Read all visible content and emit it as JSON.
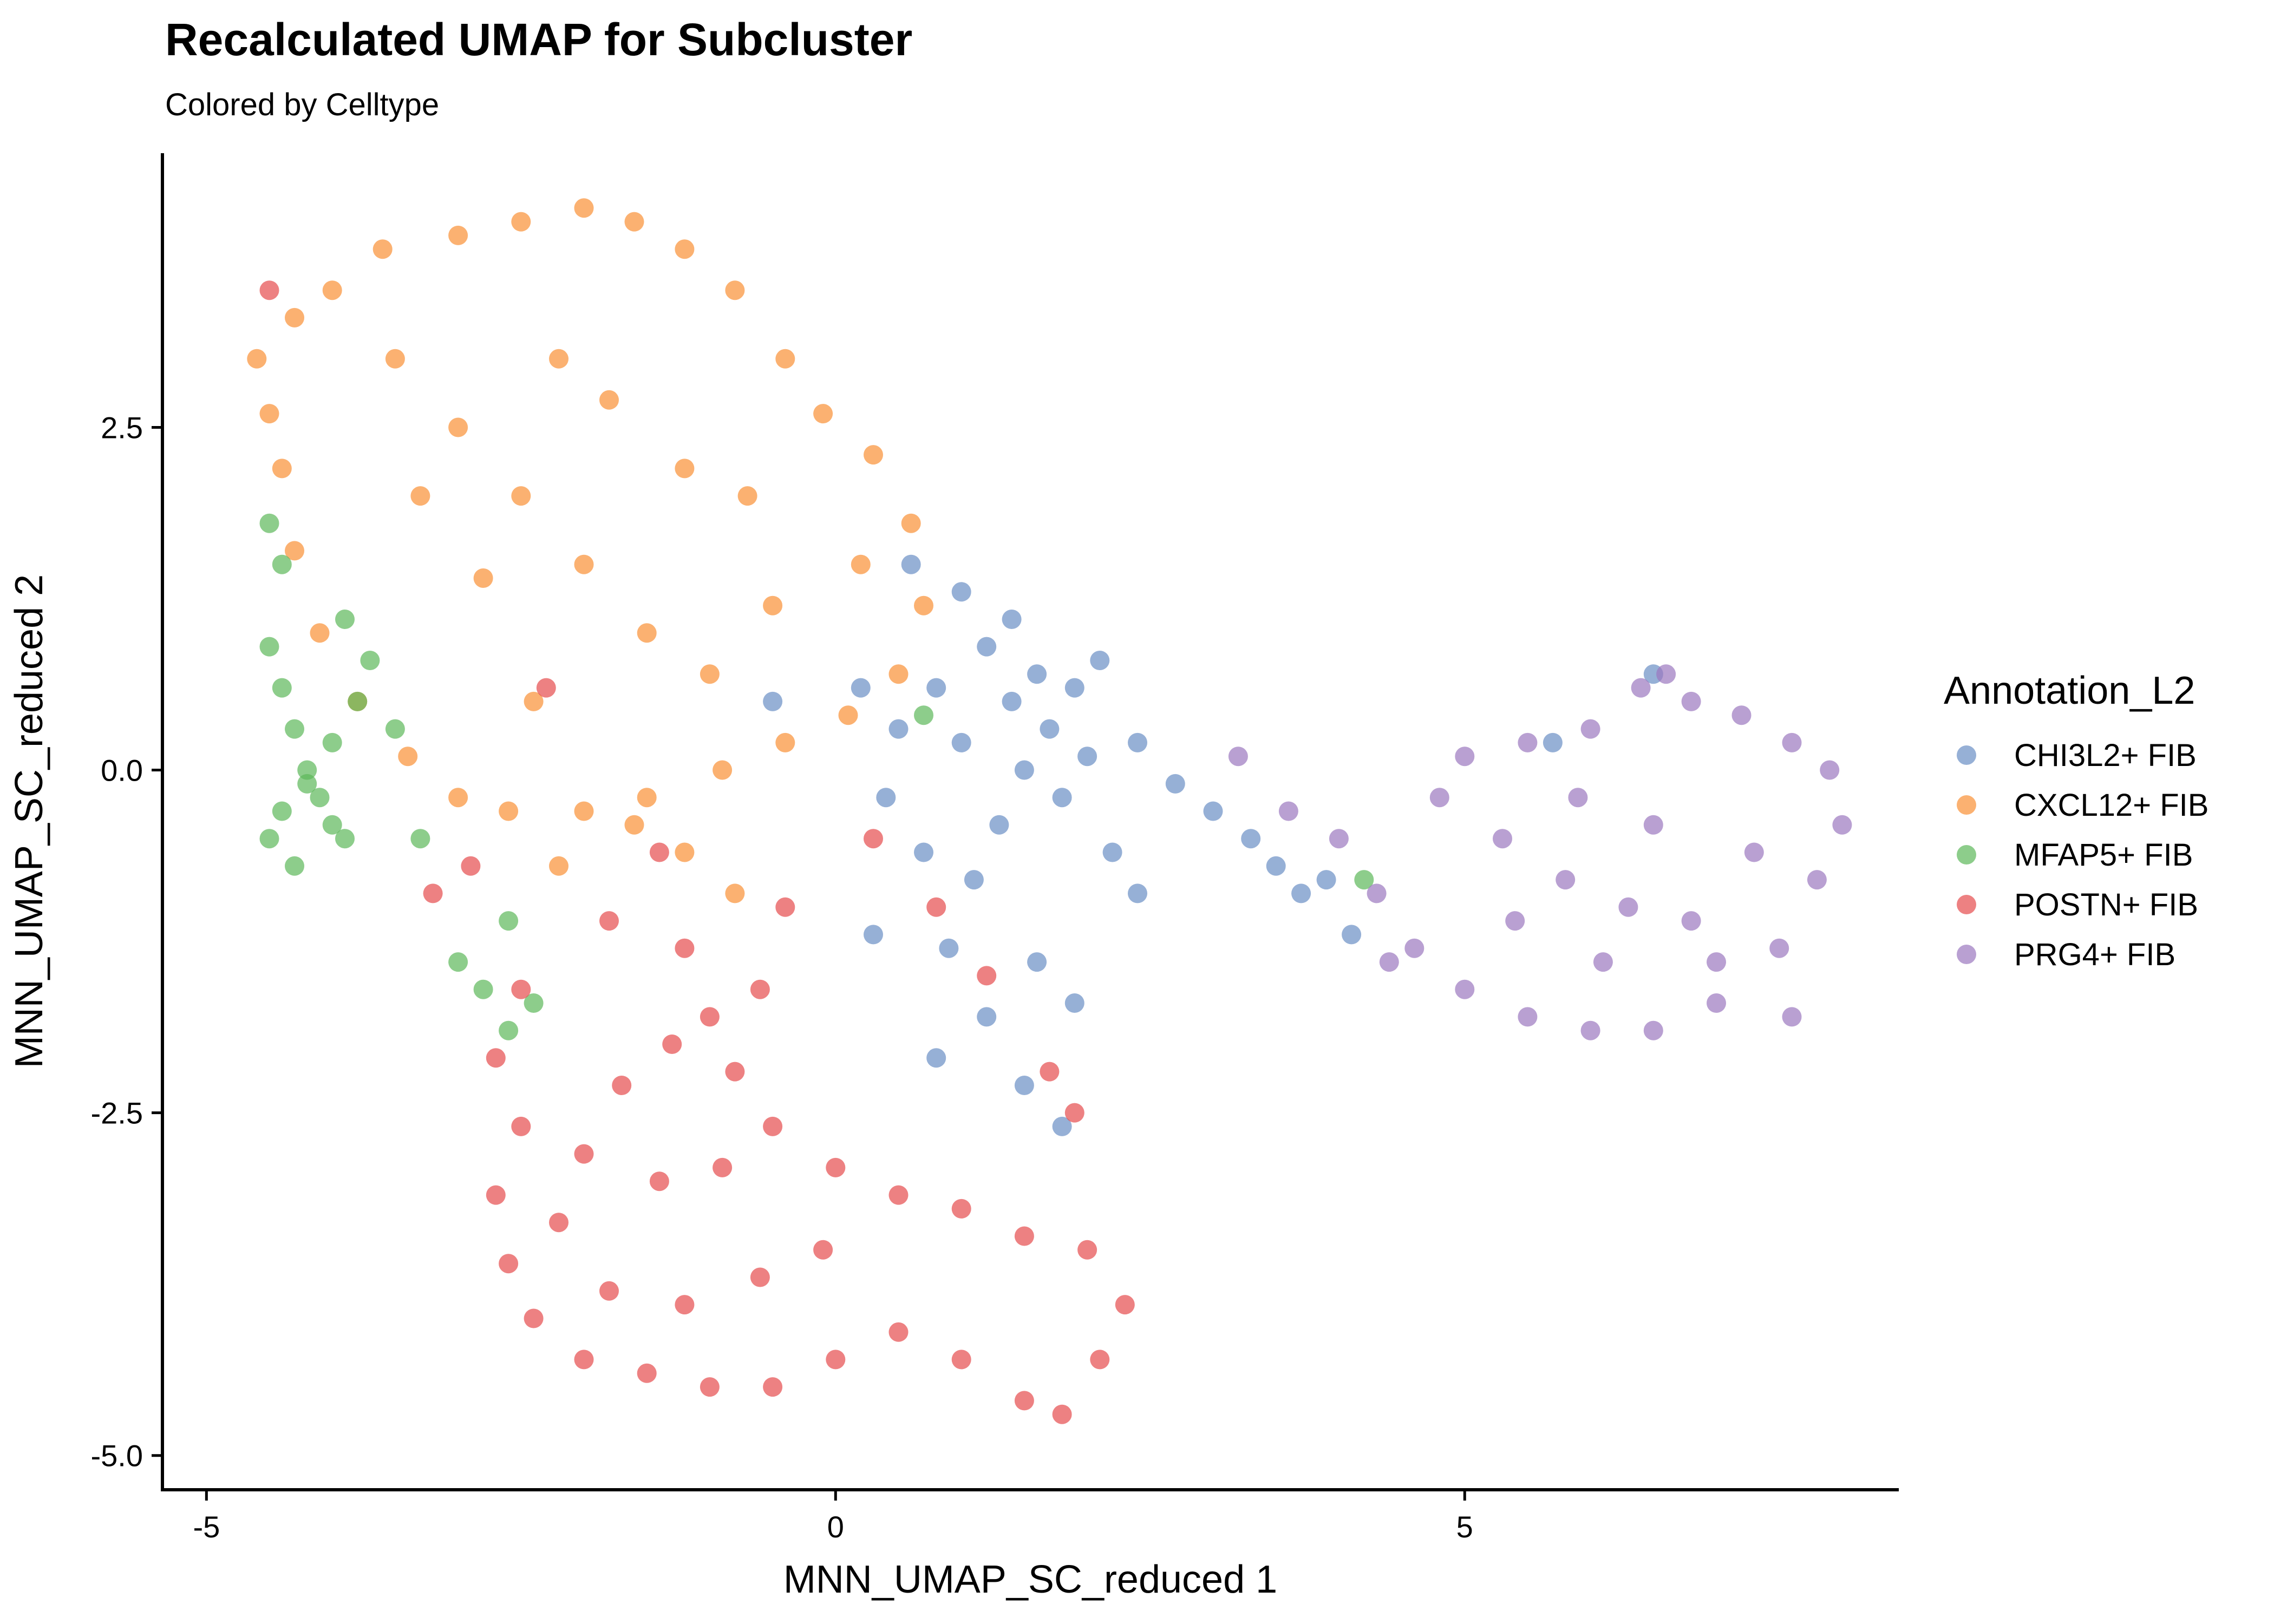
{
  "chart_data": {
    "type": "scatter",
    "title": "Recalculated UMAP for Subcluster",
    "subtitle": "Colored by Celltype",
    "xlabel": "MNN_UMAP_SC_reduced 1",
    "ylabel": "MNN_UMAP_SC_reduced 2",
    "xlim": [
      -5.35,
      8.45
    ],
    "ylim": [
      -5.25,
      4.5
    ],
    "x_ticks": [
      {
        "value": -5,
        "label": "-5"
      },
      {
        "value": 0,
        "label": "0"
      },
      {
        "value": 5,
        "label": "5"
      }
    ],
    "y_ticks": [
      {
        "value": -5.0,
        "label": "-5.0"
      },
      {
        "value": -2.5,
        "label": "-2.5"
      },
      {
        "value": 0.0,
        "label": "0.0"
      },
      {
        "value": 2.5,
        "label": "2.5"
      }
    ],
    "grid": false,
    "legend": {
      "title": "Annotation_L2",
      "position": "right"
    },
    "series": [
      {
        "name": "CHI3L2+ FIB",
        "color": "#6A8EC4",
        "points": [
          [
            0.5,
            0.3
          ],
          [
            0.8,
            0.6
          ],
          [
            1.0,
            0.2
          ],
          [
            1.2,
            0.9
          ],
          [
            1.4,
            0.5
          ],
          [
            1.5,
            0.0
          ],
          [
            1.6,
            0.7
          ],
          [
            1.7,
            0.3
          ],
          [
            1.8,
            -0.2
          ],
          [
            1.9,
            0.6
          ],
          [
            2.0,
            0.1
          ],
          [
            2.1,
            0.8
          ],
          [
            1.3,
            -0.4
          ],
          [
            1.1,
            -0.8
          ],
          [
            0.9,
            -1.3
          ],
          [
            1.2,
            -1.8
          ],
          [
            1.5,
            -2.3
          ],
          [
            1.8,
            -2.6
          ],
          [
            0.7,
            -0.6
          ],
          [
            0.4,
            -0.2
          ],
          [
            2.4,
            0.2
          ],
          [
            2.7,
            -0.1
          ],
          [
            3.0,
            -0.3
          ],
          [
            3.3,
            -0.5
          ],
          [
            3.5,
            -0.7
          ],
          [
            3.7,
            -0.9
          ],
          [
            3.9,
            -0.8
          ],
          [
            0.2,
            0.6
          ],
          [
            -0.5,
            0.5
          ],
          [
            0.6,
            1.5
          ],
          [
            1.0,
            1.3
          ],
          [
            1.4,
            1.1
          ],
          [
            1.6,
            -1.4
          ],
          [
            2.2,
            -0.6
          ],
          [
            2.4,
            -0.9
          ],
          [
            1.9,
            -1.7
          ],
          [
            0.3,
            -1.2
          ],
          [
            0.8,
            -2.1
          ],
          [
            4.1,
            -1.2
          ],
          [
            6.5,
            0.7
          ],
          [
            5.7,
            0.2
          ]
        ]
      },
      {
        "name": "CXCL12+ FIB",
        "color": "#F99035",
        "points": [
          [
            -4.6,
            3.0
          ],
          [
            -4.3,
            3.3
          ],
          [
            -4.0,
            3.5
          ],
          [
            -3.6,
            3.8
          ],
          [
            -3.0,
            3.9
          ],
          [
            -2.5,
            4.0
          ],
          [
            -2.0,
            4.1
          ],
          [
            -1.6,
            4.0
          ],
          [
            -1.2,
            3.8
          ],
          [
            -0.8,
            3.5
          ],
          [
            -0.4,
            3.0
          ],
          [
            -0.1,
            2.6
          ],
          [
            0.3,
            2.3
          ],
          [
            0.6,
            1.8
          ],
          [
            0.7,
            1.2
          ],
          [
            0.5,
            0.7
          ],
          [
            0.1,
            0.4
          ],
          [
            -0.4,
            0.2
          ],
          [
            -0.9,
            0.0
          ],
          [
            -1.5,
            -0.2
          ],
          [
            -2.0,
            -0.3
          ],
          [
            -2.6,
            -0.3
          ],
          [
            -3.0,
            -0.2
          ],
          [
            -3.4,
            0.1
          ],
          [
            -3.8,
            0.5
          ],
          [
            -4.1,
            1.0
          ],
          [
            -4.3,
            1.6
          ],
          [
            -4.4,
            2.2
          ],
          [
            -4.5,
            2.6
          ],
          [
            -3.5,
            3.0
          ],
          [
            -3.0,
            2.5
          ],
          [
            -2.5,
            2.0
          ],
          [
            -2.0,
            1.5
          ],
          [
            -1.5,
            1.0
          ],
          [
            -1.0,
            0.7
          ],
          [
            -0.5,
            1.2
          ],
          [
            -1.2,
            2.2
          ],
          [
            -2.2,
            3.0
          ],
          [
            -2.8,
            1.4
          ],
          [
            -3.3,
            2.0
          ],
          [
            -1.8,
            2.7
          ],
          [
            -0.7,
            2.0
          ],
          [
            -2.4,
            0.5
          ],
          [
            -1.2,
            -0.6
          ],
          [
            -0.8,
            -0.9
          ],
          [
            -2.2,
            -0.7
          ],
          [
            -1.6,
            -0.4
          ],
          [
            0.2,
            1.5
          ]
        ]
      },
      {
        "name": "MFAP5+ FIB",
        "color": "#5DB85A",
        "points": [
          [
            -4.5,
            0.9
          ],
          [
            -4.4,
            0.6
          ],
          [
            -4.3,
            0.3
          ],
          [
            -4.2,
            0.0
          ],
          [
            -4.1,
            -0.2
          ],
          [
            -4.0,
            -0.4
          ],
          [
            -3.9,
            -0.5
          ],
          [
            -4.4,
            -0.3
          ],
          [
            -4.5,
            -0.5
          ],
          [
            -4.3,
            -0.7
          ],
          [
            -4.2,
            -0.1
          ],
          [
            -4.0,
            0.2
          ],
          [
            -3.8,
            0.5
          ],
          [
            -4.5,
            1.8
          ],
          [
            -4.4,
            1.5
          ],
          [
            -3.9,
            1.1
          ],
          [
            -3.7,
            0.8
          ],
          [
            -3.5,
            0.3
          ],
          [
            -3.0,
            -1.4
          ],
          [
            -2.8,
            -1.6
          ],
          [
            -2.6,
            -1.9
          ],
          [
            -2.4,
            -1.7
          ],
          [
            -2.6,
            -1.1
          ],
          [
            0.7,
            0.4
          ],
          [
            4.2,
            -0.8
          ],
          [
            -3.3,
            -0.5
          ]
        ]
      },
      {
        "name": "POSTN+ FIB",
        "color": "#E54C4D",
        "points": [
          [
            -4.5,
            3.5
          ],
          [
            -2.5,
            -1.6
          ],
          [
            -2.7,
            -2.1
          ],
          [
            -2.5,
            -2.6
          ],
          [
            -2.7,
            -3.1
          ],
          [
            -2.6,
            -3.6
          ],
          [
            -2.4,
            -4.0
          ],
          [
            -2.0,
            -4.3
          ],
          [
            -1.5,
            -4.4
          ],
          [
            -1.0,
            -4.5
          ],
          [
            -0.5,
            -4.5
          ],
          [
            0.0,
            -4.3
          ],
          [
            0.5,
            -4.1
          ],
          [
            1.0,
            -4.3
          ],
          [
            1.5,
            -4.6
          ],
          [
            1.8,
            -4.7
          ],
          [
            2.1,
            -4.3
          ],
          [
            2.3,
            -3.9
          ],
          [
            2.0,
            -3.5
          ],
          [
            1.5,
            -3.4
          ],
          [
            1.0,
            -3.2
          ],
          [
            0.5,
            -3.1
          ],
          [
            0.0,
            -2.9
          ],
          [
            -0.5,
            -2.6
          ],
          [
            -0.8,
            -2.2
          ],
          [
            -1.0,
            -1.8
          ],
          [
            -1.3,
            -2.0
          ],
          [
            -1.7,
            -2.3
          ],
          [
            -2.0,
            -2.8
          ],
          [
            -2.2,
            -3.3
          ],
          [
            -1.8,
            -3.8
          ],
          [
            -1.2,
            -3.9
          ],
          [
            -0.6,
            -3.7
          ],
          [
            -0.1,
            -3.5
          ],
          [
            -1.4,
            -3.0
          ],
          [
            -0.9,
            -2.9
          ],
          [
            -2.9,
            -0.7
          ],
          [
            -3.2,
            -0.9
          ],
          [
            -1.8,
            -1.1
          ],
          [
            -1.2,
            -1.3
          ],
          [
            -0.6,
            -1.6
          ],
          [
            0.3,
            -0.5
          ],
          [
            0.8,
            -1.0
          ],
          [
            1.2,
            -1.5
          ],
          [
            1.7,
            -2.2
          ],
          [
            1.9,
            -2.5
          ],
          [
            -2.3,
            0.6
          ],
          [
            -1.4,
            -0.6
          ],
          [
            -0.4,
            -1.0
          ]
        ]
      },
      {
        "name": "PRG4+ FIB",
        "color": "#9B77BF",
        "points": [
          [
            4.0,
            -0.5
          ],
          [
            4.3,
            -0.9
          ],
          [
            4.6,
            -1.3
          ],
          [
            5.0,
            -1.6
          ],
          [
            5.5,
            -1.8
          ],
          [
            6.0,
            -1.9
          ],
          [
            6.5,
            -1.9
          ],
          [
            7.0,
            -1.7
          ],
          [
            7.5,
            -1.3
          ],
          [
            7.8,
            -0.8
          ],
          [
            8.0,
            -0.4
          ],
          [
            7.9,
            0.0
          ],
          [
            7.6,
            0.2
          ],
          [
            7.2,
            0.4
          ],
          [
            6.8,
            0.5
          ],
          [
            6.4,
            0.6
          ],
          [
            6.0,
            0.3
          ],
          [
            5.5,
            0.2
          ],
          [
            5.0,
            0.1
          ],
          [
            4.8,
            -0.2
          ],
          [
            5.3,
            -0.5
          ],
          [
            5.8,
            -0.8
          ],
          [
            6.3,
            -1.0
          ],
          [
            6.8,
            -1.1
          ],
          [
            7.3,
            -0.6
          ],
          [
            6.5,
            -0.4
          ],
          [
            5.9,
            -0.2
          ],
          [
            5.4,
            -1.1
          ],
          [
            6.1,
            -1.4
          ],
          [
            7.0,
            -1.4
          ],
          [
            6.6,
            0.7
          ],
          [
            3.2,
            0.1
          ],
          [
            3.6,
            -0.3
          ],
          [
            7.6,
            -1.8
          ],
          [
            4.4,
            -1.4
          ]
        ]
      }
    ]
  }
}
